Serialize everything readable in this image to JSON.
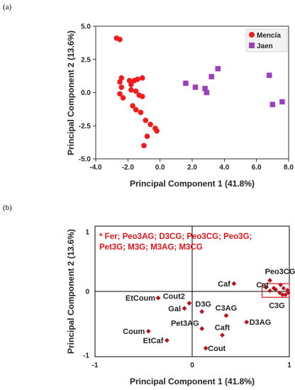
{
  "colors": {
    "mencia": "#f21a1a",
    "jaen": "#9a3fbf",
    "loading": "#b8141e",
    "box": "#e8141a"
  },
  "chart_data": [
    {
      "panel_label": "(a)",
      "type": "scatter",
      "xlabel": "Principal Component 1 (41.8%)",
      "ylabel": "Principal Component 2 (13.6%)",
      "xlim": [
        -4.0,
        8.0
      ],
      "ylim": [
        -5.0,
        5.0
      ],
      "xticks": [
        "-4.0",
        "-2.0",
        "0.0",
        "2.0",
        "4.0",
        "6.0",
        "8.0"
      ],
      "yticks": [
        "5.0",
        "2.5",
        "0.0",
        "-2.5",
        "-5.0"
      ],
      "legend_position": "top-right",
      "series": [
        {
          "name": "Mencía",
          "marker": "circle",
          "points": [
            [
              -2.7,
              4.1
            ],
            [
              -2.5,
              4.0
            ],
            [
              -2.4,
              1.1
            ],
            [
              -2.5,
              0.8
            ],
            [
              -2.4,
              0.4
            ],
            [
              -2.5,
              -0.1
            ],
            [
              -2.3,
              -0.4
            ],
            [
              -1.9,
              0.9
            ],
            [
              -1.8,
              0.6
            ],
            [
              -1.6,
              0.9
            ],
            [
              -1.4,
              1.0
            ],
            [
              -1.1,
              1.1
            ],
            [
              -1.8,
              0.2
            ],
            [
              -1.5,
              0.1
            ],
            [
              -1.3,
              -0.2
            ],
            [
              -1.1,
              -0.3
            ],
            [
              -1.7,
              -1.0
            ],
            [
              -1.5,
              -1.3
            ],
            [
              -1.2,
              -1.5
            ],
            [
              -0.9,
              -2.1
            ],
            [
              -0.6,
              -2.4
            ],
            [
              -0.3,
              -2.7
            ],
            [
              -0.2,
              -2.9
            ],
            [
              -0.8,
              -3.3
            ],
            [
              -1.0,
              -4.0
            ]
          ]
        },
        {
          "name": "Jaen",
          "marker": "square",
          "points": [
            [
              1.6,
              0.7
            ],
            [
              2.2,
              0.4
            ],
            [
              2.8,
              0.3
            ],
            [
              2.9,
              0.0
            ],
            [
              3.2,
              1.2
            ],
            [
              3.6,
              1.8
            ],
            [
              6.8,
              1.3
            ],
            [
              7.0,
              -0.9
            ],
            [
              7.6,
              -0.7
            ]
          ]
        }
      ]
    },
    {
      "panel_label": "(b)",
      "type": "scatter",
      "xlabel": "Principal Component 1 (41.8%)",
      "ylabel": "Principal Component 2 (13.6%)",
      "xlim": [
        -1,
        1
      ],
      "ylim": [
        -1,
        1
      ],
      "xticks": [
        "-1",
        "0",
        "1"
      ],
      "yticks": [
        "1",
        "0",
        "-1"
      ],
      "note_lines": [
        "* Fer; Peo3AG; D3CG; Peo3CG; Peo3G;",
        "Pet3G; M3G; M3AG; M3CG"
      ],
      "series": [
        {
          "name": "",
          "marker": "diamond",
          "points": [
            {
              "label": "Caf",
              "x": 0.43,
              "y": 0.12,
              "anchor": "end",
              "dx": -5,
              "dy": 4
            },
            {
              "label": "Peo3CG",
              "x": 0.8,
              "y": 0.17,
              "anchor": "start",
              "dx": -7,
              "dy": -9
            },
            {
              "label": "Cat",
              "x": 0.84,
              "y": 0.05,
              "anchor": "end",
              "dx": -7,
              "dy": -1
            },
            {
              "label": "C3G",
              "x": 0.93,
              "y": -0.05,
              "anchor": "middle",
              "dx": -8,
              "dy": 19
            },
            {
              "label": "EtCoum",
              "x": -0.35,
              "y": -0.1,
              "anchor": "end",
              "dx": -4,
              "dy": 4
            },
            {
              "label": "Cout2",
              "x": -0.03,
              "y": -0.18,
              "anchor": "end",
              "dx": -6,
              "dy": -6
            },
            {
              "label": "Gal",
              "x": -0.08,
              "y": -0.26,
              "anchor": "end",
              "dx": -5,
              "dy": 4
            },
            {
              "label": "D3G",
              "x": 0.1,
              "y": -0.31,
              "anchor": "middle",
              "dx": 2,
              "dy": -7
            },
            {
              "label": "C3AG",
              "x": 0.35,
              "y": -0.37,
              "anchor": "middle",
              "dx": 0,
              "dy": -7
            },
            {
              "label": "D3AG",
              "x": 0.56,
              "y": -0.47,
              "anchor": "start",
              "dx": 4,
              "dy": 4
            },
            {
              "label": "Pet3AG",
              "x": 0.1,
              "y": -0.57,
              "anchor": "end",
              "dx": -4,
              "dy": -4
            },
            {
              "label": "Coum",
              "x": -0.45,
              "y": -0.61,
              "anchor": "end",
              "dx": -5,
              "dy": 4
            },
            {
              "label": "Caft",
              "x": 0.31,
              "y": -0.67,
              "anchor": "middle",
              "dx": 0,
              "dy": -7
            },
            {
              "label": "EtCaf",
              "x": -0.26,
              "y": -0.75,
              "anchor": "end",
              "dx": -5,
              "dy": 4
            },
            {
              "label": "Cout",
              "x": 0.14,
              "y": -0.87,
              "anchor": "start",
              "dx": 3,
              "dy": 4
            }
          ]
        },
        {
          "name": "",
          "marker": "diamond",
          "points": [
            [
              0.76,
              0.06
            ],
            [
              0.8,
              0.01
            ],
            [
              0.86,
              0.03
            ],
            [
              0.9,
              -0.02
            ],
            [
              0.94,
              0.05
            ],
            [
              0.96,
              -0.05
            ],
            [
              0.98,
              0.02
            ],
            [
              0.99,
              -0.02
            ],
            [
              0.91,
              0.1
            ]
          ]
        }
      ],
      "highlight_box": {
        "x0": 0.72,
        "x1": 1.0,
        "y0": -0.09,
        "y1": 0.12
      }
    }
  ]
}
